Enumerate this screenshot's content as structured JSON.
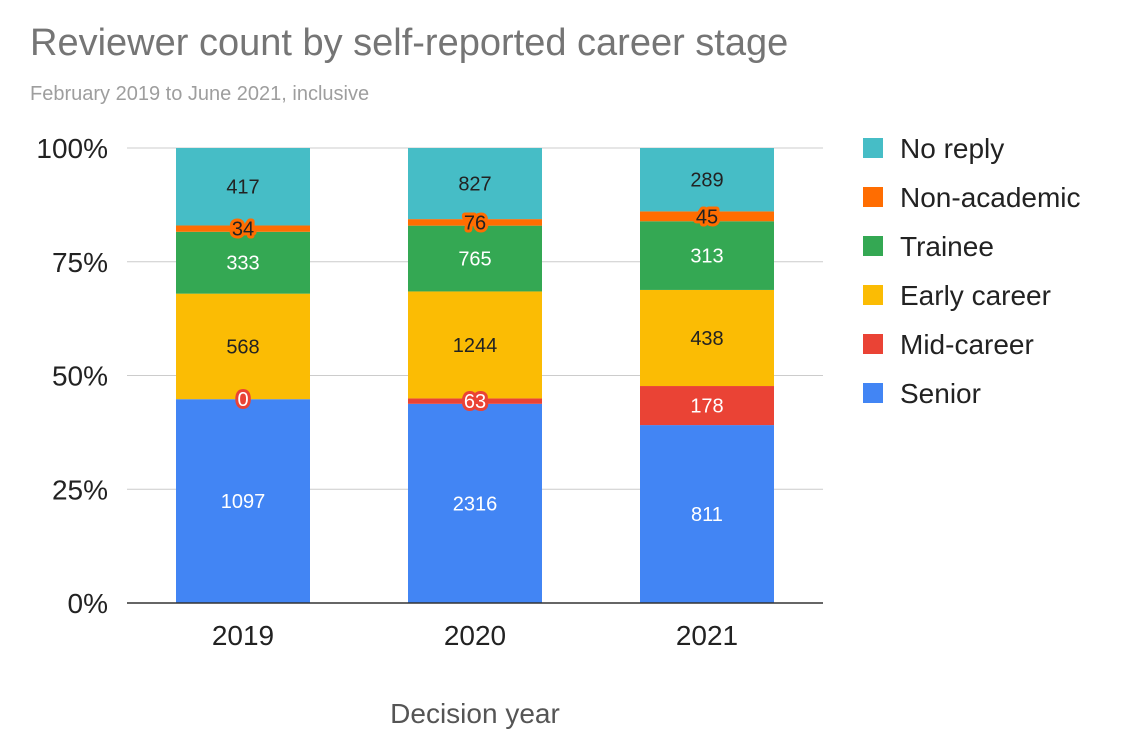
{
  "chart_data": {
    "type": "bar",
    "stacked": "percent",
    "title": "Reviewer count by self-reported career stage",
    "subtitle": "February 2019 to June 2021, inclusive",
    "xlabel": "Decision year",
    "ylabel": "",
    "categories": [
      "2019",
      "2020",
      "2021"
    ],
    "yticks": [
      "0%",
      "25%",
      "50%",
      "75%",
      "100%"
    ],
    "ylim": [
      0,
      100
    ],
    "grid": true,
    "legend_position": "right",
    "series": [
      {
        "name": "Senior",
        "color": "#4285f4",
        "label_color": "#ffffff",
        "values": [
          1097,
          2316,
          811
        ]
      },
      {
        "name": "Mid-career",
        "color": "#ea4335",
        "label_color": "#ffffff",
        "values": [
          0,
          63,
          178
        ]
      },
      {
        "name": "Early career",
        "color": "#fbbc04",
        "label_color": "#222222",
        "values": [
          568,
          1244,
          438
        ]
      },
      {
        "name": "Trainee",
        "color": "#34a853",
        "label_color": "#ffffff",
        "values": [
          333,
          765,
          313
        ]
      },
      {
        "name": "Non-academic",
        "color": "#ff6d01",
        "label_color": "#222222",
        "values": [
          34,
          76,
          45
        ]
      },
      {
        "name": "No reply",
        "color": "#46bdc6",
        "label_color": "#222222",
        "values": [
          417,
          827,
          289
        ]
      }
    ]
  }
}
